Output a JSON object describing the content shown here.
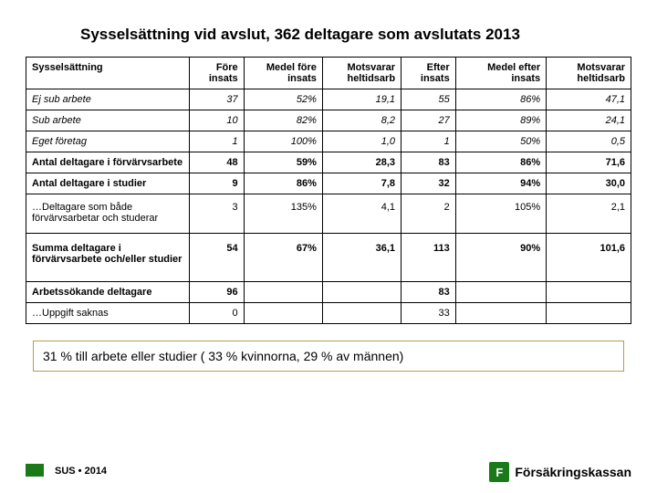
{
  "title": "Sysselsättning vid avslut, 362 deltagare som avslutats 2013",
  "table": {
    "columns": [
      "Sysselsättning",
      "Före insats",
      "Medel före insats",
      "Motsvarar heltidsarb",
      "Efter insats",
      "Medel efter insats",
      "Motsvarar heltidsarb"
    ],
    "rows": [
      {
        "label": "Ej sub arbete",
        "style": "italic",
        "cells": [
          "37",
          "52%",
          "19,1",
          "55",
          "86%",
          "47,1"
        ]
      },
      {
        "label": "Sub arbete",
        "style": "italic",
        "cells": [
          "10",
          "82%",
          "8,2",
          "27",
          "89%",
          "24,1"
        ]
      },
      {
        "label": "Eget företag",
        "style": "italic",
        "cells": [
          "1",
          "100%",
          "1,0",
          "1",
          "50%",
          "0,5"
        ]
      },
      {
        "label": "Antal deltagare i förvärvsarbete",
        "style": "bold",
        "cells": [
          "48",
          "59%",
          "28,3",
          "83",
          "86%",
          "71,6"
        ]
      },
      {
        "label": "Antal deltagare i studier",
        "style": "bold",
        "cells": [
          "9",
          "86%",
          "7,8",
          "32",
          "94%",
          "30,0"
        ]
      },
      {
        "label": "…Deltagare som både förvärvsarbetar och studerar",
        "style": "",
        "extra": "semi",
        "cells": [
          "3",
          "135%",
          "4,1",
          "2",
          "105%",
          "2,1"
        ]
      },
      {
        "label": "Summa deltagare i förvärvsarbete och/eller studier",
        "style": "bold",
        "extra": "tall",
        "cells": [
          "54",
          "67%",
          "36,1",
          "113",
          "90%",
          "101,6"
        ]
      },
      {
        "label": "Arbetssökande deltagare",
        "style": "bold",
        "cells": [
          "96",
          "",
          "",
          "83",
          "",
          ""
        ]
      },
      {
        "label": "…Uppgift saknas",
        "style": "",
        "cells": [
          "0",
          "",
          "",
          "33",
          "",
          ""
        ]
      }
    ]
  },
  "note": "31 % till arbete eller studier ( 33 % kvinnorna, 29 % av männen)",
  "footer": {
    "sus": "SUS • 2014",
    "brand": "Försäkringskassan"
  }
}
